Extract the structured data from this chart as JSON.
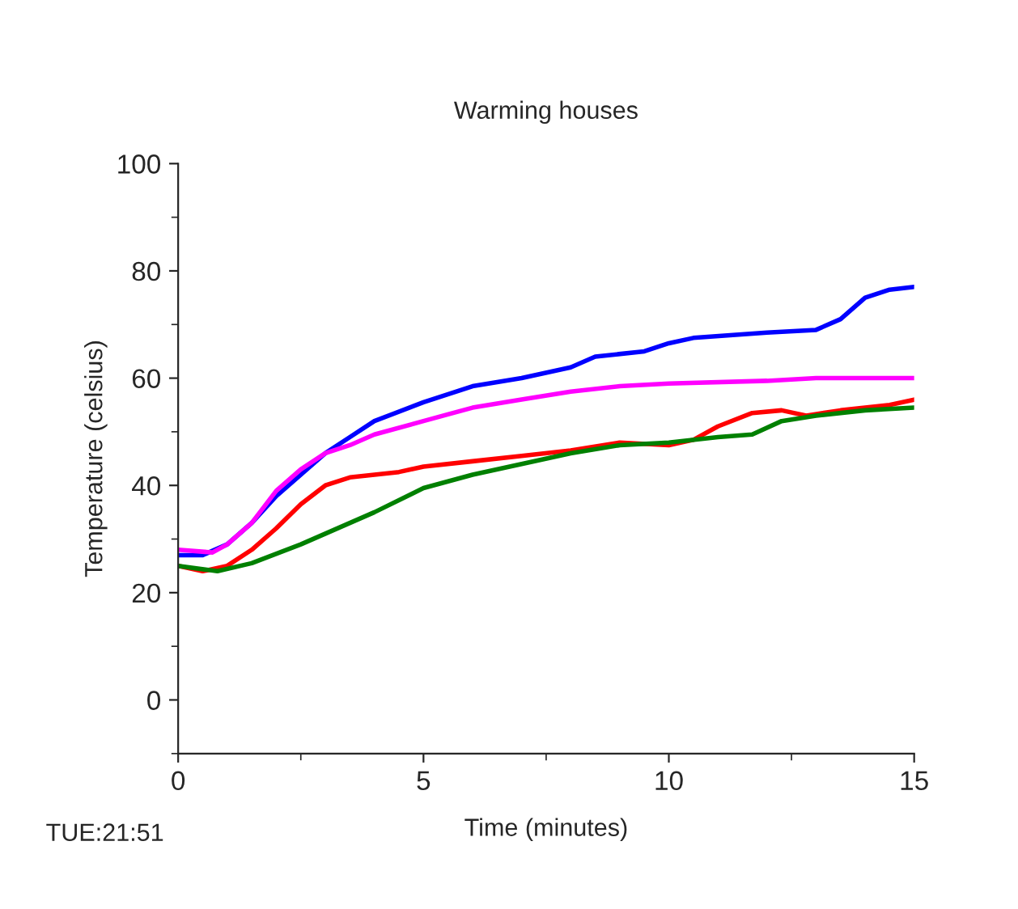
{
  "chart_data": {
    "type": "line",
    "title": "Warming houses",
    "xlabel": "Time (minutes)",
    "ylabel": "Temperature (celsius)",
    "annotations": [
      "TUE:21:51"
    ],
    "xlim": [
      0,
      15
    ],
    "xticks": [
      0,
      5,
      10,
      15
    ],
    "ylim": [
      -10,
      100
    ],
    "yticks": [
      0,
      20,
      40,
      60,
      80,
      100
    ],
    "grid": false,
    "legend": false,
    "marker": "none",
    "line_style": "solid",
    "series": [
      {
        "color": "#0000ff",
        "x": [
          0,
          0.5,
          1,
          1.5,
          2,
          2.5,
          3,
          3.5,
          4,
          5,
          6,
          7,
          8,
          8.5,
          9.5,
          10,
          10.5,
          12,
          13,
          13.5,
          14,
          14.5,
          15
        ],
        "values": [
          27,
          27,
          29,
          33,
          38,
          42,
          46,
          49,
          52,
          55.5,
          58.5,
          60,
          62,
          64,
          65,
          66.5,
          67.5,
          68.5,
          69,
          71,
          75,
          76.5,
          77
        ]
      },
      {
        "color": "#ff00ff",
        "x": [
          0,
          0.7,
          1,
          1.5,
          2,
          2.5,
          3,
          3.5,
          4,
          5,
          6,
          7,
          8,
          9,
          10,
          12,
          13,
          15
        ],
        "values": [
          28,
          27.5,
          29,
          33,
          39,
          43,
          46,
          47.5,
          49.5,
          52,
          54.5,
          56,
          57.5,
          58.5,
          59,
          59.5,
          60,
          60
        ]
      },
      {
        "color": "#ff0000",
        "x": [
          0,
          0.5,
          1,
          1.5,
          2,
          2.5,
          3,
          3.5,
          4,
          4.5,
          5,
          6,
          7,
          8,
          9,
          10,
          10.5,
          11,
          11.7,
          12.3,
          12.8,
          13.5,
          14.5,
          15
        ],
        "values": [
          25,
          24,
          25,
          28,
          32,
          36.5,
          40,
          41.5,
          42,
          42.5,
          43.5,
          44.5,
          45.5,
          46.5,
          48,
          47.5,
          48.5,
          51,
          53.5,
          54,
          53,
          54,
          55,
          56
        ]
      },
      {
        "color": "#008000",
        "x": [
          0,
          0.8,
          1.5,
          2.5,
          3,
          4,
          5,
          6,
          7,
          8,
          9,
          10,
          11,
          11.7,
          12.3,
          13,
          14,
          15
        ],
        "values": [
          25,
          24,
          25.5,
          29,
          31,
          35,
          39.5,
          42,
          44,
          46,
          47.5,
          48,
          49,
          49.5,
          52,
          53,
          54,
          54.5
        ]
      }
    ]
  }
}
